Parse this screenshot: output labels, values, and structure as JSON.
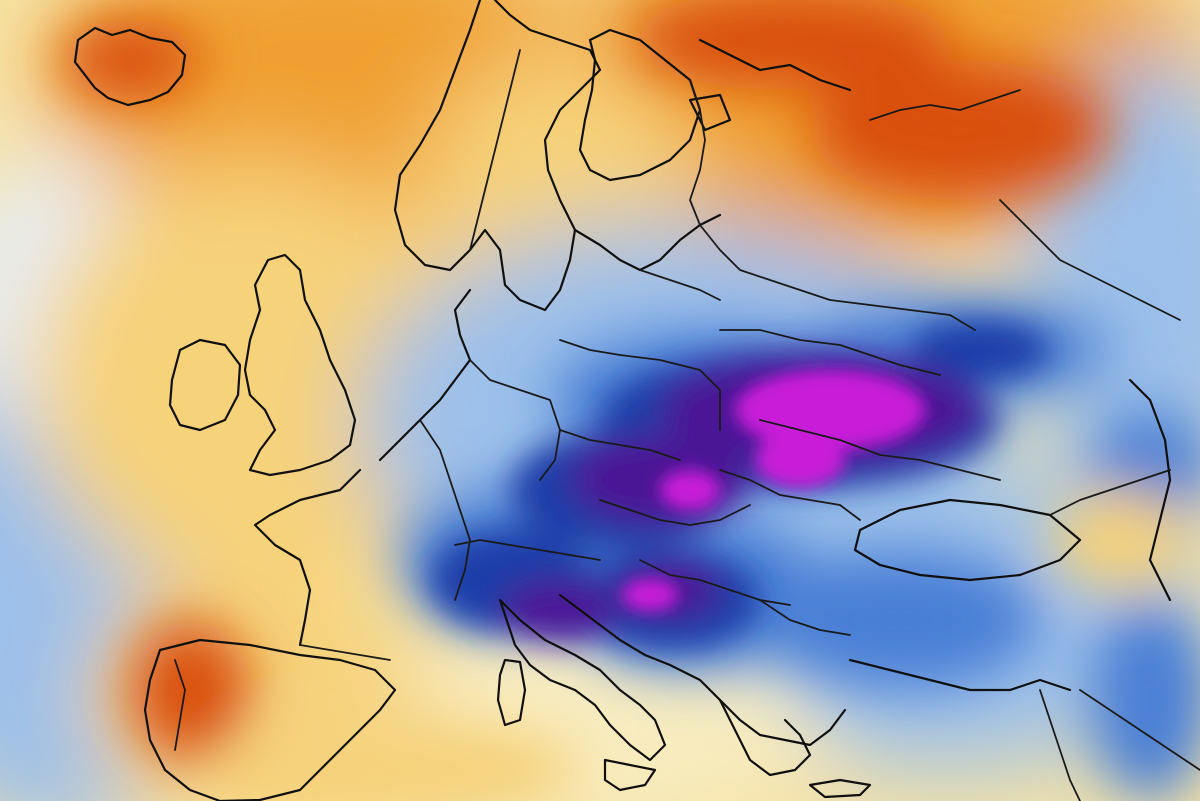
{
  "map": {
    "kind": "temperature-anomaly-map",
    "region": "Europe",
    "has_text": false,
    "color_scale": {
      "very_warm": "#d94f0f",
      "warm": "#f0a030",
      "mild_warm": "#f6d27a",
      "near_normal_warm": "#f8ecc0",
      "near_normal_cold": "#e6eef8",
      "cool": "#9cc0ea",
      "cold": "#4a7fd6",
      "very_cold": "#1f3ea8",
      "extreme_cold_deep": "#4b1596",
      "extreme_cold_peak": "#c81bd8"
    },
    "coastline_color": "#101010",
    "border_color": "#1a1a1a"
  }
}
